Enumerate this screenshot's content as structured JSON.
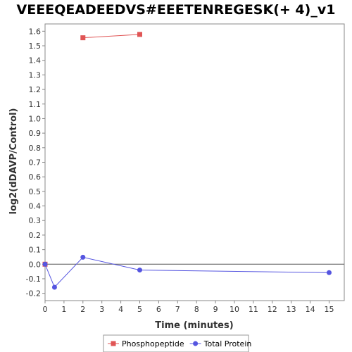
{
  "chart_data": {
    "type": "line",
    "title": "VEEEQEADEEDVS#EEETENREGESK(+ 4)_v1",
    "xlabel": "Time (minutes)",
    "ylabel": "log2(dDAVP/Control)",
    "xlim": [
      0,
      15.8
    ],
    "ylim": [
      -0.25,
      1.65
    ],
    "xticks": [
      0,
      1,
      2,
      3,
      4,
      5,
      6,
      7,
      8,
      9,
      10,
      11,
      12,
      13,
      14,
      15
    ],
    "yticks": [
      -0.2,
      -0.1,
      0.0,
      0.1,
      0.2,
      0.3,
      0.4,
      0.5,
      0.6,
      0.7,
      0.8,
      0.9,
      1.0,
      1.1,
      1.2,
      1.3,
      1.4,
      1.5,
      1.6
    ],
    "ytick_labels": [
      "-0.2",
      "-0.1",
      "0.0",
      "0.1",
      "0.2",
      "0.3",
      "0.4",
      "0.5",
      "0.6",
      "0.7",
      "0.8",
      "0.9",
      "1.0",
      "1.1",
      "1.2",
      "1.3",
      "1.4",
      "1.5",
      "1.6"
    ],
    "zero_line": 0,
    "grid": false,
    "legend_position": "bottom",
    "series": [
      {
        "name": "Phosphopeptide",
        "color": "#e05555",
        "marker": "square",
        "segments": [
          [
            {
              "x": 0,
              "y": 0.0
            }
          ],
          [
            {
              "x": 2,
              "y": 1.555
            },
            {
              "x": 5,
              "y": 1.578
            }
          ]
        ]
      },
      {
        "name": "Total Protein",
        "color": "#5555e0",
        "marker": "circle",
        "segments": [
          [
            {
              "x": 0,
              "y": 0.0
            },
            {
              "x": 0.5,
              "y": -0.158
            },
            {
              "x": 2,
              "y": 0.048
            },
            {
              "x": 5,
              "y": -0.04
            },
            {
              "x": 15,
              "y": -0.058
            }
          ]
        ]
      }
    ]
  }
}
